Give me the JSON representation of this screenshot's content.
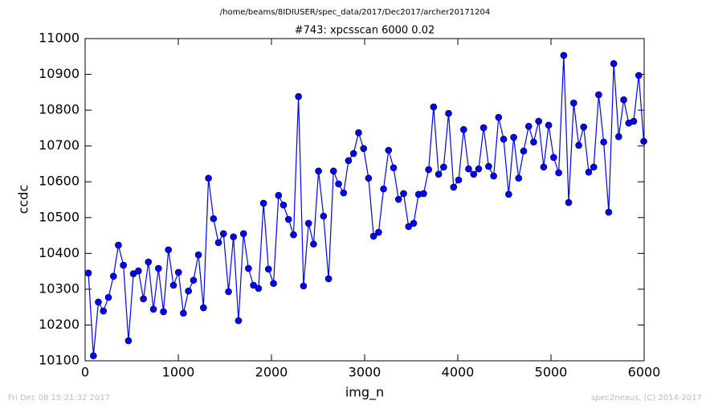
{
  "chart_data": {
    "type": "line",
    "suptitle": "/home/beams/8IDIUSER/spec_data/2017/Dec2017/archer20171204",
    "title": "#743: xpcsscan 6000 0.02",
    "xlabel": "img_n",
    "ylabel": "ccdc",
    "footer_left": "Fri Dec 08 15:21:32 2017",
    "footer_right": "spec2nexus, (C) 2014-2017",
    "x": [
      35,
      89,
      142,
      196,
      250,
      304,
      357,
      411,
      465,
      518,
      572,
      626,
      679,
      733,
      787,
      841,
      894,
      948,
      1002,
      1055,
      1109,
      1163,
      1216,
      1270,
      1324,
      1378,
      1431,
      1485,
      1539,
      1592,
      1646,
      1700,
      1753,
      1807,
      1861,
      1915,
      1968,
      2022,
      2076,
      2129,
      2183,
      2237,
      2290,
      2344,
      2398,
      2452,
      2505,
      2559,
      2613,
      2666,
      2720,
      2774,
      2827,
      2881,
      2935,
      2989,
      3042,
      3096,
      3150,
      3203,
      3257,
      3311,
      3364,
      3418,
      3472,
      3526,
      3579,
      3633,
      3687,
      3740,
      3794,
      3848,
      3901,
      3955,
      4009,
      4063,
      4116,
      4170,
      4224,
      4277,
      4331,
      4385,
      4438,
      4492,
      4546,
      4600,
      4653,
      4707,
      4761,
      4814,
      4868,
      4922,
      4975,
      5029,
      5083,
      5137,
      5190,
      5244,
      5298,
      5351,
      5405,
      5459,
      5512,
      5566,
      5620,
      5674,
      5727,
      5781,
      5835,
      5888,
      5942,
      5996
    ],
    "series": [
      {
        "color": "#0000ff",
        "values": [
          10345,
          10114,
          10264,
          10239,
          10277,
          10336,
          10423,
          10367,
          10156,
          10343,
          10351,
          10273,
          10376,
          10244,
          10358,
          10237,
          10410,
          10311,
          10347,
          10233,
          10295,
          10325,
          10396,
          10248,
          10610,
          10497,
          10430,
          10455,
          10293,
          10446,
          10212,
          10455,
          10358,
          10311,
          10302,
          10540,
          10356,
          10316,
          10562,
          10535,
          10495,
          10452,
          10838,
          10309,
          10484,
          10426,
          10630,
          10504,
          10329,
          10630,
          10594,
          10569,
          10659,
          10679,
          10737,
          10693,
          10610,
          10448,
          10459,
          10580,
          10688,
          10639,
          10551,
          10567,
          10475,
          10484,
          10565,
          10567,
          10634,
          10809,
          10621,
          10641,
          10791,
          10585,
          10605,
          10746,
          10636,
          10621,
          10636,
          10751,
          10643,
          10616,
          10780,
          10719,
          10565,
          10724,
          10610,
          10686,
          10755,
          10711,
          10769,
          10641,
          10758,
          10668,
          10625,
          10953,
          10542,
          10820,
          10702,
          10753,
          10627,
          10641,
          10843,
          10711,
          10515,
          10930,
          10726,
          10829,
          10764,
          10769,
          10897,
          10713
        ]
      }
    ],
    "xlim": [
      0,
      6000
    ],
    "ylim": [
      10100,
      11000
    ],
    "xticks": [
      0,
      1000,
      2000,
      3000,
      4000,
      5000,
      6000
    ],
    "yticks": [
      10100,
      10200,
      10300,
      10400,
      10500,
      10600,
      10700,
      10800,
      10900,
      11000
    ]
  }
}
